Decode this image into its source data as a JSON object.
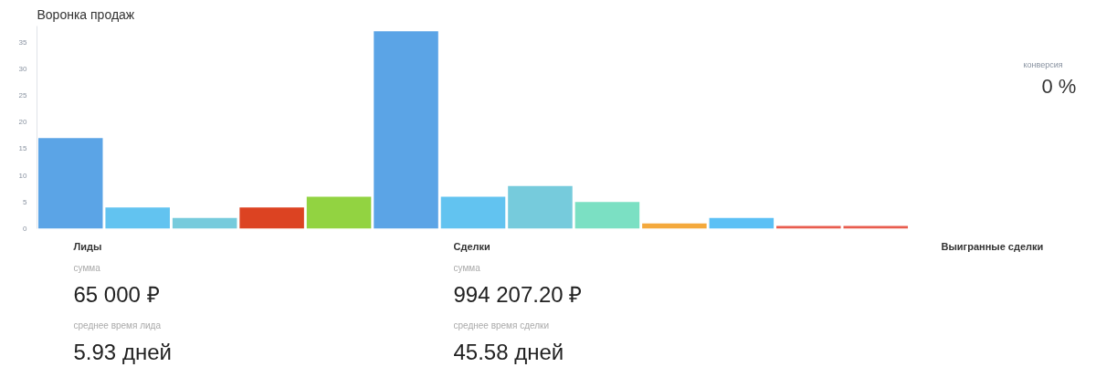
{
  "chart_data": {
    "type": "bar",
    "title": "Воронка продаж",
    "categories": [
      null,
      null,
      null,
      null,
      null,
      null,
      null,
      null,
      null,
      null,
      null,
      null,
      null
    ],
    "values": [
      17,
      4,
      2,
      4,
      6,
      37,
      6,
      8,
      5,
      1,
      2,
      0.5,
      0.5
    ],
    "colors": [
      "#5ba4e6",
      "#62c3f0",
      "#76cbdc",
      "#dc4322",
      "#92d341",
      "#5ba4e6",
      "#62c3f0",
      "#76cbdc",
      "#7be0c3",
      "#f4a93c",
      "#5bc0f5",
      "#e85c4e",
      "#e85c4e"
    ],
    "ylim": [
      0,
      38
    ],
    "yticks": [
      0,
      5,
      10,
      15,
      20,
      25,
      30,
      35
    ],
    "grid": false,
    "annotations": [
      "конверсия",
      "0 %",
      "Лиды",
      "сумма",
      "65 000 ₽",
      "среднее время лида",
      "5.93 дней",
      "Сделки",
      "сумма",
      "994 207.20 ₽",
      "среднее время сделки",
      "45.58 дней",
      "Выигранные сделки"
    ]
  }
}
